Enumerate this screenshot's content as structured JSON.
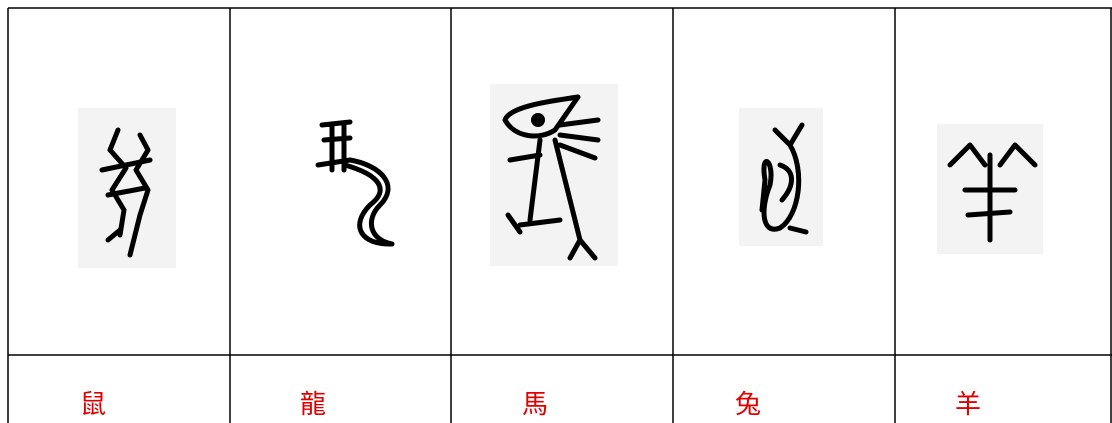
{
  "table": {
    "labels": [
      "鼠",
      "龍",
      "馬",
      "兔",
      "羊"
    ]
  }
}
